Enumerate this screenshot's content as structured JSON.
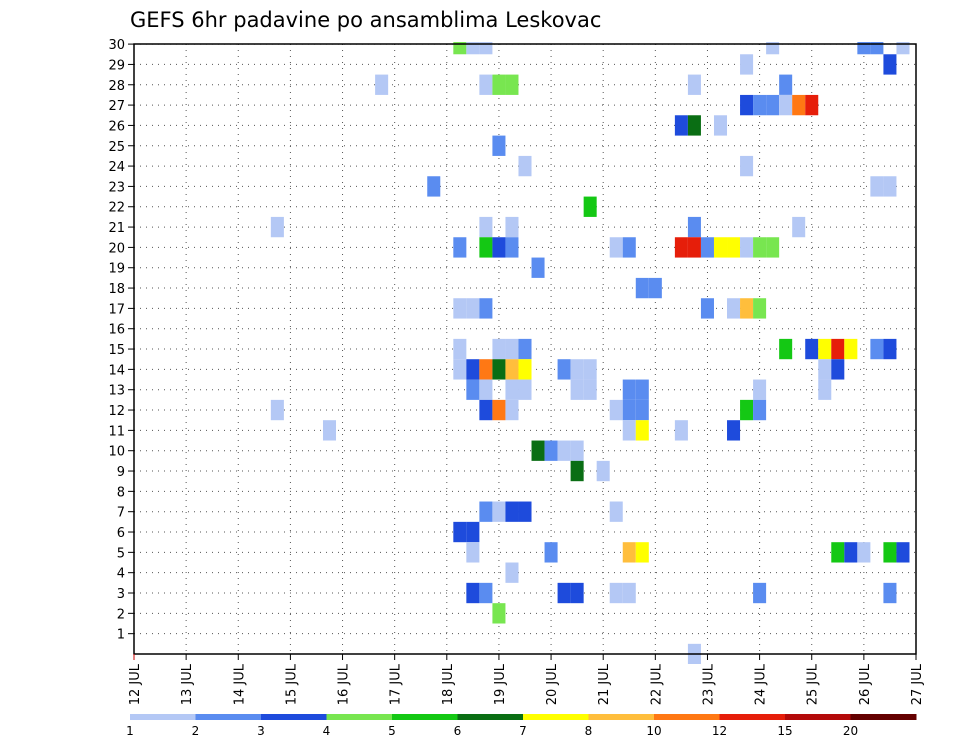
{
  "chart_data": {
    "type": "heatmap",
    "title": "GEFS 6hr padavine po ansamblima Leskovac",
    "xlabel": "",
    "ylabel": "",
    "x_ticks": [
      "12 JUL",
      "13 JUL",
      "14 JUL",
      "15 JUL",
      "16 JUL",
      "17 JUL",
      "18 JUL",
      "19 JUL",
      "20 JUL",
      "21 JUL",
      "22 JUL",
      "23 JUL",
      "24 JUL",
      "25 JUL",
      "26 JUL",
      "27 JUL"
    ],
    "y_ticks": [
      "1",
      "2",
      "3",
      "4",
      "5",
      "6",
      "7",
      "8",
      "9",
      "10",
      "11",
      "12",
      "13",
      "14",
      "15",
      "16",
      "17",
      "18",
      "19",
      "20",
      "21",
      "22",
      "23",
      "24",
      "25",
      "26",
      "27",
      "28",
      "29",
      "30"
    ],
    "xlim_days": [
      0,
      15
    ],
    "ylim_members": [
      0,
      30
    ],
    "grid": true,
    "grid_style": "dotted",
    "legend": {
      "placement": "bottom",
      "thresholds": [
        "1",
        "2",
        "3",
        "4",
        "5",
        "6",
        "7",
        "8",
        "10",
        "12",
        "15",
        "20"
      ],
      "colors": [
        "#b4c8f5",
        "#5a8cf0",
        "#1e4bdc",
        "#78e650",
        "#14c814",
        "#0a6e14",
        "#ffff00",
        "#ffbe3c",
        "#ff7814",
        "#e61e0a",
        "#b40a0a",
        "#640000"
      ]
    },
    "cells": [
      {
        "d": 6.25,
        "m": 30,
        "c": 3
      },
      {
        "d": 6.5,
        "m": 30,
        "c": 0
      },
      {
        "d": 6.75,
        "m": 30,
        "c": 0
      },
      {
        "d": 12.25,
        "m": 30,
        "c": 0
      },
      {
        "d": 14.0,
        "m": 30,
        "c": 1
      },
      {
        "d": 14.25,
        "m": 30,
        "c": 1
      },
      {
        "d": 14.75,
        "m": 30,
        "c": 0
      },
      {
        "d": 11.75,
        "m": 29,
        "c": 0
      },
      {
        "d": 14.5,
        "m": 29,
        "c": 2
      },
      {
        "d": 4.75,
        "m": 28,
        "c": 0
      },
      {
        "d": 6.75,
        "m": 28,
        "c": 0
      },
      {
        "d": 7.0,
        "m": 28,
        "c": 3
      },
      {
        "d": 7.25,
        "m": 28,
        "c": 3
      },
      {
        "d": 10.75,
        "m": 28,
        "c": 0
      },
      {
        "d": 12.5,
        "m": 28,
        "c": 1
      },
      {
        "d": 11.75,
        "m": 27,
        "c": 2
      },
      {
        "d": 12.0,
        "m": 27,
        "c": 1
      },
      {
        "d": 12.25,
        "m": 27,
        "c": 1
      },
      {
        "d": 12.5,
        "m": 27,
        "c": 0
      },
      {
        "d": 12.75,
        "m": 27,
        "c": 8
      },
      {
        "d": 13.0,
        "m": 27,
        "c": 9
      },
      {
        "d": 10.5,
        "m": 26,
        "c": 2
      },
      {
        "d": 10.75,
        "m": 26,
        "c": 5
      },
      {
        "d": 11.25,
        "m": 26,
        "c": 0
      },
      {
        "d": 7.0,
        "m": 25,
        "c": 1
      },
      {
        "d": 7.5,
        "m": 24,
        "c": 0
      },
      {
        "d": 11.75,
        "m": 24,
        "c": 0
      },
      {
        "d": 5.75,
        "m": 23,
        "c": 1
      },
      {
        "d": 14.25,
        "m": 23,
        "c": 0
      },
      {
        "d": 14.5,
        "m": 23,
        "c": 0
      },
      {
        "d": 8.75,
        "m": 22,
        "c": 4
      },
      {
        "d": 2.75,
        "m": 21,
        "c": 0
      },
      {
        "d": 6.75,
        "m": 21,
        "c": 0
      },
      {
        "d": 7.25,
        "m": 21,
        "c": 0
      },
      {
        "d": 10.75,
        "m": 21,
        "c": 1
      },
      {
        "d": 12.75,
        "m": 21,
        "c": 0
      },
      {
        "d": 6.25,
        "m": 20,
        "c": 1
      },
      {
        "d": 6.75,
        "m": 20,
        "c": 4
      },
      {
        "d": 7.0,
        "m": 20,
        "c": 2
      },
      {
        "d": 7.25,
        "m": 20,
        "c": 1
      },
      {
        "d": 9.25,
        "m": 20,
        "c": 0
      },
      {
        "d": 9.5,
        "m": 20,
        "c": 1
      },
      {
        "d": 10.5,
        "m": 20,
        "c": 9
      },
      {
        "d": 10.75,
        "m": 20,
        "c": 9
      },
      {
        "d": 11.0,
        "m": 20,
        "c": 1
      },
      {
        "d": 11.25,
        "m": 20,
        "c": 6
      },
      {
        "d": 11.5,
        "m": 20,
        "c": 6
      },
      {
        "d": 11.75,
        "m": 20,
        "c": 0
      },
      {
        "d": 12.0,
        "m": 20,
        "c": 3
      },
      {
        "d": 12.25,
        "m": 20,
        "c": 3
      },
      {
        "d": 7.75,
        "m": 19,
        "c": 1
      },
      {
        "d": 9.75,
        "m": 18,
        "c": 1
      },
      {
        "d": 10.0,
        "m": 18,
        "c": 1
      },
      {
        "d": 6.25,
        "m": 17,
        "c": 0
      },
      {
        "d": 6.5,
        "m": 17,
        "c": 0
      },
      {
        "d": 6.75,
        "m": 17,
        "c": 1
      },
      {
        "d": 11.0,
        "m": 17,
        "c": 1
      },
      {
        "d": 11.5,
        "m": 17,
        "c": 0
      },
      {
        "d": 11.75,
        "m": 17,
        "c": 7
      },
      {
        "d": 12.0,
        "m": 17,
        "c": 3
      },
      {
        "d": 6.25,
        "m": 15,
        "c": 0
      },
      {
        "d": 7.0,
        "m": 15,
        "c": 0
      },
      {
        "d": 7.25,
        "m": 15,
        "c": 0
      },
      {
        "d": 7.5,
        "m": 15,
        "c": 1
      },
      {
        "d": 12.5,
        "m": 15,
        "c": 4
      },
      {
        "d": 13.0,
        "m": 15,
        "c": 2
      },
      {
        "d": 13.25,
        "m": 15,
        "c": 6
      },
      {
        "d": 13.5,
        "m": 15,
        "c": 9
      },
      {
        "d": 13.75,
        "m": 15,
        "c": 6
      },
      {
        "d": 14.25,
        "m": 15,
        "c": 1
      },
      {
        "d": 14.5,
        "m": 15,
        "c": 2
      },
      {
        "d": 6.25,
        "m": 14,
        "c": 0
      },
      {
        "d": 6.5,
        "m": 14,
        "c": 2
      },
      {
        "d": 6.75,
        "m": 14,
        "c": 8
      },
      {
        "d": 7.0,
        "m": 14,
        "c": 5
      },
      {
        "d": 7.25,
        "m": 14,
        "c": 7
      },
      {
        "d": 7.5,
        "m": 14,
        "c": 6
      },
      {
        "d": 8.25,
        "m": 14,
        "c": 1
      },
      {
        "d": 8.5,
        "m": 14,
        "c": 0
      },
      {
        "d": 8.75,
        "m": 14,
        "c": 0
      },
      {
        "d": 13.25,
        "m": 14,
        "c": 0
      },
      {
        "d": 13.5,
        "m": 14,
        "c": 2
      },
      {
        "d": 6.5,
        "m": 13,
        "c": 1
      },
      {
        "d": 6.75,
        "m": 13,
        "c": 0
      },
      {
        "d": 7.25,
        "m": 13,
        "c": 0
      },
      {
        "d": 7.5,
        "m": 13,
        "c": 0
      },
      {
        "d": 8.5,
        "m": 13,
        "c": 0
      },
      {
        "d": 8.75,
        "m": 13,
        "c": 0
      },
      {
        "d": 9.5,
        "m": 13,
        "c": 1
      },
      {
        "d": 9.75,
        "m": 13,
        "c": 1
      },
      {
        "d": 12.0,
        "m": 13,
        "c": 0
      },
      {
        "d": 13.25,
        "m": 13,
        "c": 0
      },
      {
        "d": 2.75,
        "m": 12,
        "c": 0
      },
      {
        "d": 6.75,
        "m": 12,
        "c": 2
      },
      {
        "d": 7.0,
        "m": 12,
        "c": 8
      },
      {
        "d": 7.25,
        "m": 12,
        "c": 0
      },
      {
        "d": 9.25,
        "m": 12,
        "c": 0
      },
      {
        "d": 9.5,
        "m": 12,
        "c": 1
      },
      {
        "d": 9.75,
        "m": 12,
        "c": 1
      },
      {
        "d": 11.75,
        "m": 12,
        "c": 4
      },
      {
        "d": 12.0,
        "m": 12,
        "c": 1
      },
      {
        "d": 3.75,
        "m": 11,
        "c": 0
      },
      {
        "d": 9.5,
        "m": 11,
        "c": 0
      },
      {
        "d": 9.75,
        "m": 11,
        "c": 6
      },
      {
        "d": 10.5,
        "m": 11,
        "c": 0
      },
      {
        "d": 11.5,
        "m": 11,
        "c": 2
      },
      {
        "d": 7.75,
        "m": 10,
        "c": 5
      },
      {
        "d": 8.0,
        "m": 10,
        "c": 1
      },
      {
        "d": 8.25,
        "m": 10,
        "c": 0
      },
      {
        "d": 8.5,
        "m": 10,
        "c": 0
      },
      {
        "d": 8.5,
        "m": 9,
        "c": 5
      },
      {
        "d": 9.0,
        "m": 9,
        "c": 0
      },
      {
        "d": 6.75,
        "m": 7,
        "c": 1
      },
      {
        "d": 7.0,
        "m": 7,
        "c": 0
      },
      {
        "d": 7.25,
        "m": 7,
        "c": 2
      },
      {
        "d": 7.5,
        "m": 7,
        "c": 2
      },
      {
        "d": 9.25,
        "m": 7,
        "c": 0
      },
      {
        "d": 6.25,
        "m": 6,
        "c": 2
      },
      {
        "d": 6.5,
        "m": 6,
        "c": 2
      },
      {
        "d": 6.5,
        "m": 5,
        "c": 0
      },
      {
        "d": 8.0,
        "m": 5,
        "c": 1
      },
      {
        "d": 9.5,
        "m": 5,
        "c": 7
      },
      {
        "d": 9.75,
        "m": 5,
        "c": 6
      },
      {
        "d": 13.5,
        "m": 5,
        "c": 4
      },
      {
        "d": 13.75,
        "m": 5,
        "c": 2
      },
      {
        "d": 14.0,
        "m": 5,
        "c": 0
      },
      {
        "d": 14.5,
        "m": 5,
        "c": 4
      },
      {
        "d": 14.75,
        "m": 5,
        "c": 2
      },
      {
        "d": 7.25,
        "m": 4,
        "c": 0
      },
      {
        "d": 6.5,
        "m": 3,
        "c": 2
      },
      {
        "d": 6.75,
        "m": 3,
        "c": 1
      },
      {
        "d": 8.25,
        "m": 3,
        "c": 2
      },
      {
        "d": 8.5,
        "m": 3,
        "c": 2
      },
      {
        "d": 9.25,
        "m": 3,
        "c": 0
      },
      {
        "d": 9.5,
        "m": 3,
        "c": 0
      },
      {
        "d": 12.0,
        "m": 3,
        "c": 1
      },
      {
        "d": 14.5,
        "m": 3,
        "c": 1
      },
      {
        "d": 7.0,
        "m": 2,
        "c": 3
      },
      {
        "d": 10.75,
        "m": 0,
        "c": 0
      }
    ]
  }
}
